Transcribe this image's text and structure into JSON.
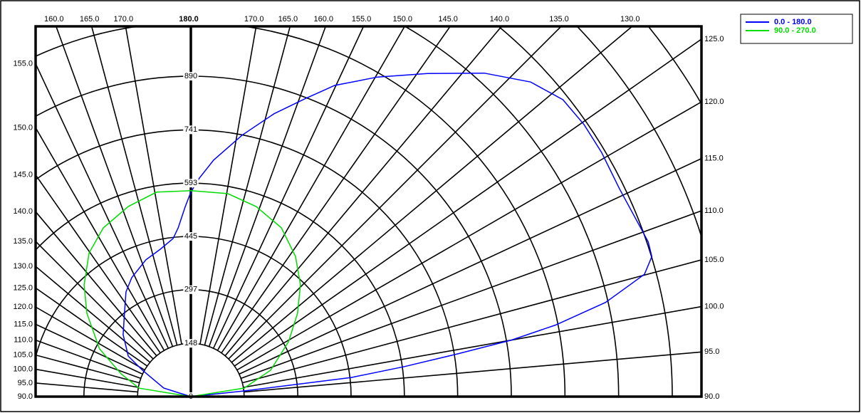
{
  "chart_data": {
    "type": "polar",
    "rlim": [
      0,
      890
    ],
    "rticks": [
      0,
      148,
      297,
      445,
      593,
      741,
      890
    ],
    "top_tick": {
      "value": 180,
      "label": "180.0"
    },
    "left_ticks": [
      {
        "value": 90,
        "label": "90.0"
      },
      {
        "value": 95,
        "label": "95.0"
      },
      {
        "value": 100,
        "label": "100.0"
      },
      {
        "value": 105,
        "label": "105.0"
      },
      {
        "value": 110,
        "label": "110.0"
      },
      {
        "value": 115,
        "label": "115.0"
      },
      {
        "value": 120,
        "label": "120.0"
      },
      {
        "value": 125,
        "label": "125.0"
      },
      {
        "value": 130,
        "label": "130.0"
      },
      {
        "value": 135,
        "label": "135.0"
      },
      {
        "value": 140,
        "label": "140.0"
      },
      {
        "value": 145,
        "label": "145.0"
      },
      {
        "value": 150,
        "label": "150.0"
      },
      {
        "value": 155,
        "label": "155.0"
      },
      {
        "value": 160,
        "label": "160.0"
      },
      {
        "value": 165,
        "label": "165.0"
      },
      {
        "value": 170,
        "label": "170.0"
      }
    ],
    "right_ticks": [
      {
        "value": 90,
        "label": "90.0"
      },
      {
        "value": 95,
        "label": "95.0"
      },
      {
        "value": 100,
        "label": "100.0"
      },
      {
        "value": 105,
        "label": "105.0"
      },
      {
        "value": 110,
        "label": "110.0"
      },
      {
        "value": 115,
        "label": "115.0"
      },
      {
        "value": 120,
        "label": "120.0"
      },
      {
        "value": 125,
        "label": "125.0"
      },
      {
        "value": 130,
        "label": "130.0"
      },
      {
        "value": 135,
        "label": "135.0"
      },
      {
        "value": 140,
        "label": "140.0"
      },
      {
        "value": 145,
        "label": "145.0"
      },
      {
        "value": 150,
        "label": "150.0"
      },
      {
        "value": 155,
        "label": "155.0"
      },
      {
        "value": 160,
        "label": "160.0"
      },
      {
        "value": 165,
        "label": "165.0"
      },
      {
        "value": 170,
        "label": "170.0"
      }
    ],
    "series": [
      {
        "name": "0.0 - 180.0",
        "color": "#0000ff",
        "x": [
          90,
          96.1,
          96.8,
          98.0,
          99.1,
          100.0,
          101.1,
          102.8,
          104.3,
          105.1,
          106.9,
          108.7,
          115.9,
          120.7,
          124.7,
          128.6,
          132.8,
          137.8,
          143.8,
          149.7,
          155.2,
          158.9,
          163.6,
          168.9,
          174.5,
          177.8,
          180,
          181.7,
          184.3,
          186.4,
          191.7,
          198.2,
          206.4,
          211.8,
          218.5,
          227.5,
          237.1,
          241.4,
          252.5,
          270
        ],
        "values": [
          0,
          149,
          449,
          599,
          751,
          904,
          1032,
          1181,
          1259,
          1305,
          1338,
          1341,
          1323,
          1327,
          1328,
          1322,
          1286,
          1213,
          1112,
          1028,
          952,
          888,
          819,
          740,
          660,
          607,
          568,
          528,
          470,
          442,
          418,
          400,
          369,
          342,
          296,
          255,
          207,
          153,
          79,
          0
        ]
      },
      {
        "name": "90.0 - 270.0",
        "color": "#00dd00",
        "x": [
          90,
          99.1,
          108.3,
          119.3,
          128.0,
          135.6,
          143.3,
          151.8,
          161.0,
          169.7,
          180,
          189.5,
          198.2,
          207.4,
          215.3,
          223.7,
          231.3,
          242.4,
          251.9,
          260.7,
          270
        ],
        "values": [
          0,
          150,
          233,
          311,
          376,
          435,
          486,
          532,
          558,
          573,
          572,
          576,
          556,
          528,
          489,
          429,
          370,
          286,
          204,
          146,
          0
        ]
      }
    ]
  }
}
